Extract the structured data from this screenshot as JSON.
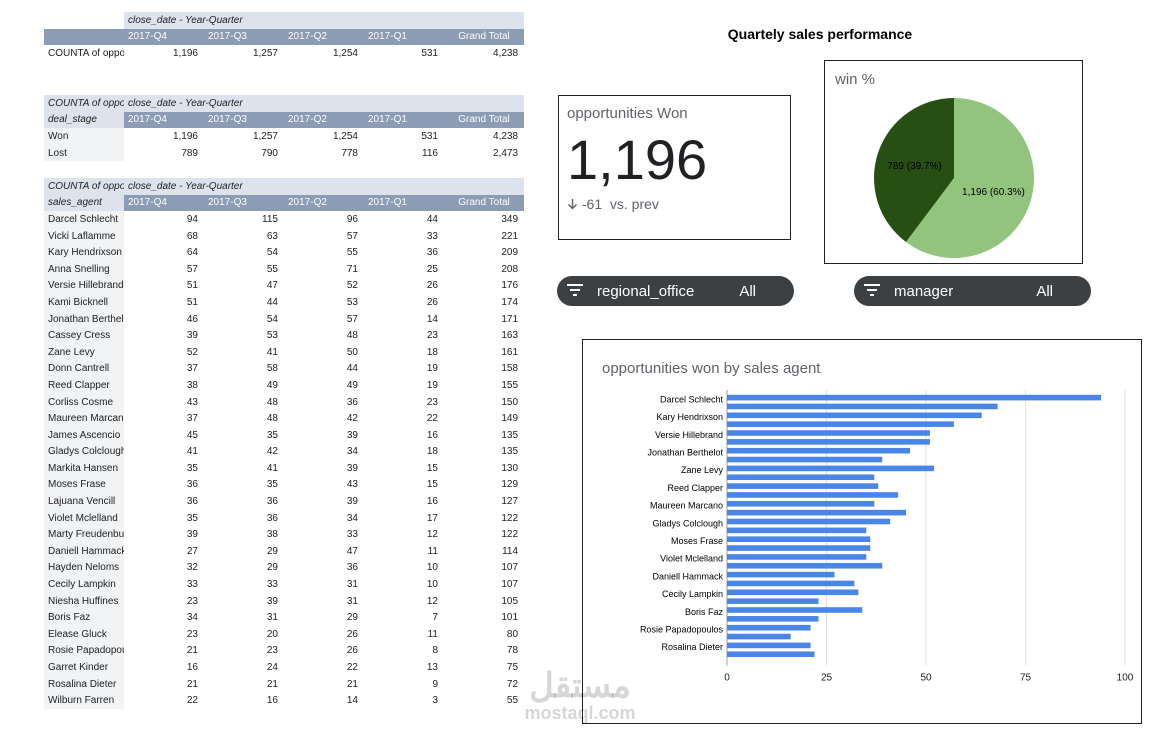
{
  "dashboard": {
    "title": "Quartely sales performance"
  },
  "pivot_total": {
    "col_field": "close_date - Year-Quarter",
    "quarters": [
      "2017-Q4",
      "2017-Q3",
      "2017-Q2",
      "2017-Q1",
      "Grand Total"
    ],
    "rows": [
      {
        "label": "COUNTA of oppo",
        "values": [
          "1,196",
          "1,257",
          "1,254",
          "531",
          "4,238"
        ]
      }
    ]
  },
  "pivot_stage": {
    "metric": "COUNTA of oppo",
    "col_field": "close_date - Year-Quarter",
    "row_field": "deal_stage",
    "quarters": [
      "2017-Q4",
      "2017-Q3",
      "2017-Q2",
      "2017-Q1",
      "Grand Total"
    ],
    "rows": [
      {
        "label": "Won",
        "values": [
          "1,196",
          "1,257",
          "1,254",
          "531",
          "4,238"
        ]
      },
      {
        "label": "Lost",
        "values": [
          "789",
          "790",
          "778",
          "116",
          "2,473"
        ]
      }
    ]
  },
  "pivot_agent": {
    "metric": "COUNTA of oppo",
    "col_field": "close_date - Year-Quarter",
    "row_field": "sales_agent",
    "quarters": [
      "2017-Q4",
      "2017-Q3",
      "2017-Q2",
      "2017-Q1",
      "Grand Total"
    ],
    "rows": [
      {
        "label": "Darcel Schlecht",
        "values": [
          "94",
          "115",
          "96",
          "44",
          "349"
        ]
      },
      {
        "label": "Vicki Laflamme",
        "values": [
          "68",
          "63",
          "57",
          "33",
          "221"
        ]
      },
      {
        "label": "Kary Hendrixson",
        "values": [
          "64",
          "54",
          "55",
          "36",
          "209"
        ]
      },
      {
        "label": "Anna Snelling",
        "values": [
          "57",
          "55",
          "71",
          "25",
          "208"
        ]
      },
      {
        "label": "Versie Hillebrand",
        "values": [
          "51",
          "47",
          "52",
          "26",
          "176"
        ]
      },
      {
        "label": "Kami Bicknell",
        "values": [
          "51",
          "44",
          "53",
          "26",
          "174"
        ]
      },
      {
        "label": "Jonathan Berthel",
        "values": [
          "46",
          "54",
          "57",
          "14",
          "171"
        ]
      },
      {
        "label": "Cassey Cress",
        "values": [
          "39",
          "53",
          "48",
          "23",
          "163"
        ]
      },
      {
        "label": "Zane Levy",
        "values": [
          "52",
          "41",
          "50",
          "18",
          "161"
        ]
      },
      {
        "label": "Donn Cantrell",
        "values": [
          "37",
          "58",
          "44",
          "19",
          "158"
        ]
      },
      {
        "label": "Reed Clapper",
        "values": [
          "38",
          "49",
          "49",
          "19",
          "155"
        ]
      },
      {
        "label": "Corliss Cosme",
        "values": [
          "43",
          "48",
          "36",
          "23",
          "150"
        ]
      },
      {
        "label": "Maureen Marcan",
        "values": [
          "37",
          "48",
          "42",
          "22",
          "149"
        ]
      },
      {
        "label": "James Ascencio",
        "values": [
          "45",
          "35",
          "39",
          "16",
          "135"
        ]
      },
      {
        "label": "Gladys Colclough",
        "values": [
          "41",
          "42",
          "34",
          "18",
          "135"
        ]
      },
      {
        "label": "Markita Hansen",
        "values": [
          "35",
          "41",
          "39",
          "15",
          "130"
        ]
      },
      {
        "label": "Moses Frase",
        "values": [
          "36",
          "35",
          "43",
          "15",
          "129"
        ]
      },
      {
        "label": "Lajuana Vencill",
        "values": [
          "36",
          "36",
          "39",
          "16",
          "127"
        ]
      },
      {
        "label": "Violet Mclelland",
        "values": [
          "35",
          "36",
          "34",
          "17",
          "122"
        ]
      },
      {
        "label": "Marty Freudenbu",
        "values": [
          "39",
          "38",
          "33",
          "12",
          "122"
        ]
      },
      {
        "label": "Daniell Hammack",
        "values": [
          "27",
          "29",
          "47",
          "11",
          "114"
        ]
      },
      {
        "label": "Hayden Neloms",
        "values": [
          "32",
          "29",
          "36",
          "10",
          "107"
        ]
      },
      {
        "label": "Cecily Lampkin",
        "values": [
          "33",
          "33",
          "31",
          "10",
          "107"
        ]
      },
      {
        "label": "Niesha Huffines",
        "values": [
          "23",
          "39",
          "31",
          "12",
          "105"
        ]
      },
      {
        "label": "Boris Faz",
        "values": [
          "34",
          "31",
          "29",
          "7",
          "101"
        ]
      },
      {
        "label": "Elease Gluck",
        "values": [
          "23",
          "20",
          "26",
          "11",
          "80"
        ]
      },
      {
        "label": "Rosie Papadopoulos",
        "values": [
          "21",
          "23",
          "26",
          "8",
          "78"
        ]
      },
      {
        "label": "Garret Kinder",
        "values": [
          "16",
          "24",
          "22",
          "13",
          "75"
        ]
      },
      {
        "label": "Rosalina Dieter",
        "values": [
          "21",
          "21",
          "21",
          "9",
          "72"
        ]
      },
      {
        "label": "Wilburn Farren",
        "values": [
          "22",
          "16",
          "14",
          "3",
          "55"
        ]
      }
    ]
  },
  "scorecard": {
    "label": "opportunities Won",
    "value": "1,196",
    "delta": "-61",
    "delta_suffix": "vs. prev",
    "delta_icon": "arrow-down-icon"
  },
  "filters": [
    {
      "name": "regional_office",
      "value": "All",
      "icon": "filter-icon"
    },
    {
      "name": "manager",
      "value": "All",
      "icon": "filter-icon"
    }
  ],
  "colors": {
    "pie_won": "#93c47d",
    "pie_lost": "#274e13",
    "bar": "#4a86e8",
    "pivot_header": "#8c9cb5",
    "chip": "#3c4043"
  },
  "chart_data": [
    {
      "type": "pie",
      "title": "win %",
      "slices": [
        {
          "label": "1,196 (60.3%)",
          "value": 1196,
          "percent": 60.3,
          "color": "#93c47d"
        },
        {
          "label": "789 (39.7%)",
          "value": 789,
          "percent": 39.7,
          "color": "#274e13"
        }
      ]
    },
    {
      "type": "bar",
      "orientation": "horizontal",
      "title": "opportunities won by sales agent",
      "categories": [
        "Darcel Schlecht",
        "Vicki Laflamme",
        "Kary Hendrixson",
        "Anna Snelling",
        "Versie Hillebrand",
        "Kami Bicknell",
        "Jonathan Berthelot",
        "Cassey Cress",
        "Zane Levy",
        "Donn Cantrell",
        "Reed Clapper",
        "Corliss Cosme",
        "Maureen Marcano",
        "James Ascencio",
        "Gladys Colclough",
        "Markita Hansen",
        "Moses Frase",
        "Lajuana Vencill",
        "Violet Mclelland",
        "Marty Freudenburg",
        "Daniell Hammack",
        "Hayden Neloms",
        "Cecily Lampkin",
        "Niesha Huffines",
        "Boris Faz",
        "Elease Gluck",
        "Rosie Papadopoulos",
        "Garret Kinder",
        "Rosalina Dieter",
        "Wilburn Farren"
      ],
      "shown_labels": [
        "Darcel Schlecht",
        "Kary Hendrixson",
        "Versie Hillebrand",
        "Jonathan Berthelot",
        "Zane Levy",
        "Reed Clapper",
        "Maureen Marcano",
        "Gladys Colclough",
        "Moses Frase",
        "Violet Mclelland",
        "Daniell Hammack",
        "Cecily Lampkin",
        "Boris Faz",
        "Rosie Papadopoulos",
        "Rosalina Dieter"
      ],
      "values": [
        94,
        68,
        64,
        57,
        51,
        51,
        46,
        39,
        52,
        37,
        38,
        43,
        37,
        45,
        41,
        35,
        36,
        36,
        35,
        39,
        27,
        32,
        33,
        23,
        34,
        23,
        21,
        16,
        21,
        22
      ],
      "xlim": [
        0,
        100
      ],
      "xticks": [
        0,
        25,
        50,
        75,
        100
      ],
      "grid": true
    }
  ]
}
